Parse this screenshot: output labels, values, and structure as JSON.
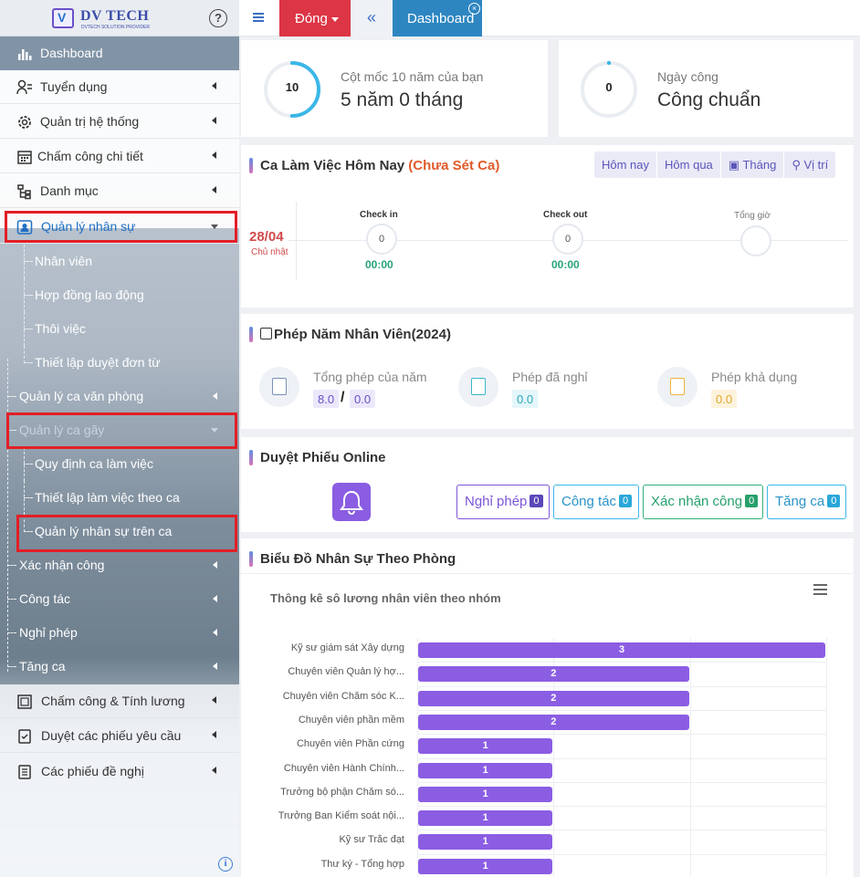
{
  "sidebar": {
    "logo_title": "DV TECH",
    "logo_subtitle": "DVTECH SOLUTION PROVIDER",
    "help_icon": "question-circle-icon",
    "items": [
      {
        "label": "Dashboard",
        "icon": "bar-chart-icon"
      },
      {
        "label": "Tuyển dụng",
        "icon": "user-list-icon"
      },
      {
        "label": "Quản trị hệ thống",
        "icon": "gear-icon"
      },
      {
        "label": "Chấm công chi tiết",
        "icon": "calendar-icon"
      },
      {
        "label": "Danh mục",
        "icon": "tree-icon"
      },
      {
        "label": "Quản lý nhân sự",
        "icon": "id-card-icon"
      }
    ],
    "hr_subitems": [
      "Nhân viên",
      "Hợp đồng lao động",
      "Thôi việc",
      "Thiết lập duyệt đơn từ"
    ],
    "office_shift": "Quản lý ca văn phòng",
    "shift_mgmt": "Quản lý ca gãy",
    "shift_subitems": [
      "Quy định ca làm việc",
      "Thiết lập làm việc theo ca",
      "Quản lý nhân sự trên ca"
    ],
    "more_items": [
      "Xác nhận công",
      "Công tác",
      "Nghỉ phép",
      "Tăng ca"
    ],
    "bottom_items": [
      {
        "label": "Chấm công & Tính lương",
        "icon": "money-icon"
      },
      {
        "label": "Duyệt các phiếu yêu cầu",
        "icon": "check-doc-icon"
      },
      {
        "label": "Các phiếu đề nghị",
        "icon": "document-icon"
      }
    ]
  },
  "topbar": {
    "close_menu_label": "Đóng",
    "tab_label": "Dashboard"
  },
  "stats": {
    "milestone_value": "10",
    "milestone_label": "Cột mốc 10 năm của bạn",
    "milestone_text": "5 năm 0 tháng",
    "milestone_progress": 0.5,
    "workday_value": "0",
    "workday_label": "Ngày công",
    "workday_text": "Công chuẩn"
  },
  "shift": {
    "title": "Ca Làm Việc Hôm Nay",
    "title_status": "(Chưa Sét Ca)",
    "filters": [
      "Hôm nay",
      "Hôm qua",
      "Tháng",
      "Vị trí"
    ],
    "date": "28/04",
    "weekday": "Chủ nhật",
    "checkin_label": "Check in",
    "checkin_count": "0",
    "checkin_time": "00:00",
    "checkout_label": "Check out",
    "checkout_count": "0",
    "checkout_time": "00:00",
    "total_label": "Tổng giờ"
  },
  "leave": {
    "title": "Phép Năm Nhân Viên(2024)",
    "total_label": "Tổng phép của năm",
    "total_a": "8.0",
    "total_sep": "/",
    "total_b": "0.0",
    "used_label": "Phép đã nghỉ",
    "used_value": "0.0",
    "avail_label": "Phép khả dụng",
    "avail_value": "0.0"
  },
  "online": {
    "title": "Duyệt Phiếu Online",
    "buttons": [
      {
        "label": "Nghỉ phép",
        "count": "0"
      },
      {
        "label": "Công tác",
        "count": "0"
      },
      {
        "label": "Xác nhận công",
        "count": "0"
      },
      {
        "label": "Tăng ca",
        "count": "0"
      }
    ]
  },
  "chart_section_title": "Biểu Đồ Nhân Sự Theo Phòng",
  "chart_data": {
    "type": "bar",
    "orientation": "horizontal",
    "title": "Thông kê sô lương nhân viên theo nhóm",
    "categories": [
      "Kỹ sư giám sát Xây dựng",
      "Chuyên viên Quản lý hợ...",
      "Chuyên viên Chăm sóc K...",
      "Chuyên viên phần mềm",
      "Chuyên viên Phần cứng",
      "Chuyên viên Hành Chính...",
      "Trưởng bộ phận Chăm só...",
      "Trưởng Ban Kiểm soát nội...",
      "Kỹ sư Trắc đạt",
      "Thư ký - Tổng hợp"
    ],
    "values": [
      3,
      2,
      2,
      2,
      1,
      1,
      1,
      1,
      1,
      1
    ],
    "xlim": [
      0,
      3
    ],
    "color": "#8b5de3"
  }
}
